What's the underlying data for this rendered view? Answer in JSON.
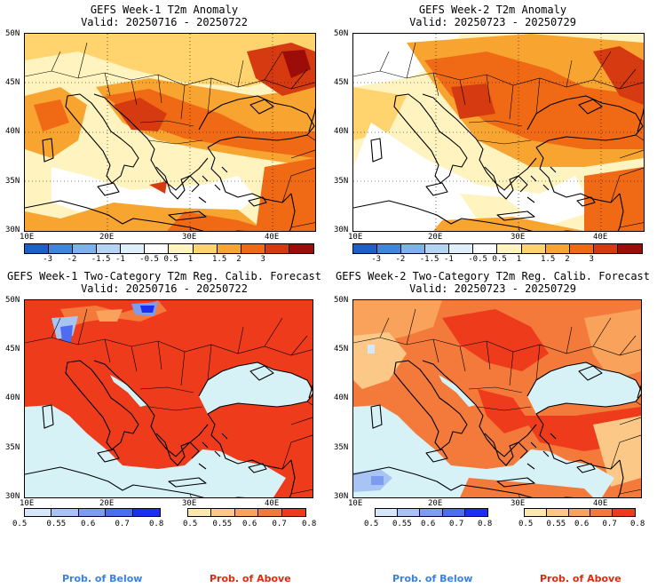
{
  "panels": [
    {
      "title": "GEFS Week-1 T2m Anomaly",
      "valid": "Valid: 20250716 - 20250722"
    },
    {
      "title": "GEFS Week-2 T2m Anomaly",
      "valid": "Valid: 20250723 - 20250729"
    },
    {
      "title": "GEFS Week-1 Two-Category T2m Reg. Calib. Forecast",
      "valid": "Valid: 20250716 - 20250722"
    },
    {
      "title": "GEFS Week-2 Two-Category T2m Reg. Calib. Forecast",
      "valid": "Valid: 20250723 - 20250729"
    }
  ],
  "lat_labels": [
    "50N",
    "45N",
    "40N",
    "35N",
    "30N"
  ],
  "lon_labels": [
    "10E",
    "20E",
    "30E",
    "40E"
  ],
  "anomaly_colorbar": {
    "ticks": [
      "-3",
      "-2",
      "-1.5",
      "-1",
      "-0.5",
      "0.5",
      "1",
      "1.5",
      "2",
      "3"
    ],
    "colors": [
      "#1b5fc7",
      "#3f87db",
      "#7db1ea",
      "#b5d4f3",
      "#dfeefb",
      "#ffffff",
      "#fff4bf",
      "#ffd36e",
      "#f8a431",
      "#f06a16",
      "#d63a10",
      "#9c0d09"
    ]
  },
  "below_colorbar": {
    "ticks": [
      "0.5",
      "0.55",
      "0.6",
      "0.7",
      "0.8"
    ],
    "colors": [
      "#d6e6fb",
      "#a8c4f5",
      "#7d9cf0",
      "#4d6cef",
      "#1c2ff0"
    ]
  },
  "above_colorbar": {
    "ticks": [
      "0.5",
      "0.55",
      "0.6",
      "0.7",
      "0.8"
    ],
    "colors": [
      "#fde7b0",
      "#fbc887",
      "#f8a25c",
      "#f37a3a",
      "#ee3b1c"
    ]
  },
  "legend": {
    "below": "Prob. of Below",
    "above": "Prob. of Above"
  },
  "colors": {
    "sea_prob": "#d6f2f6",
    "below_text": "#3a82e0",
    "above_text": "#e02a10"
  }
}
